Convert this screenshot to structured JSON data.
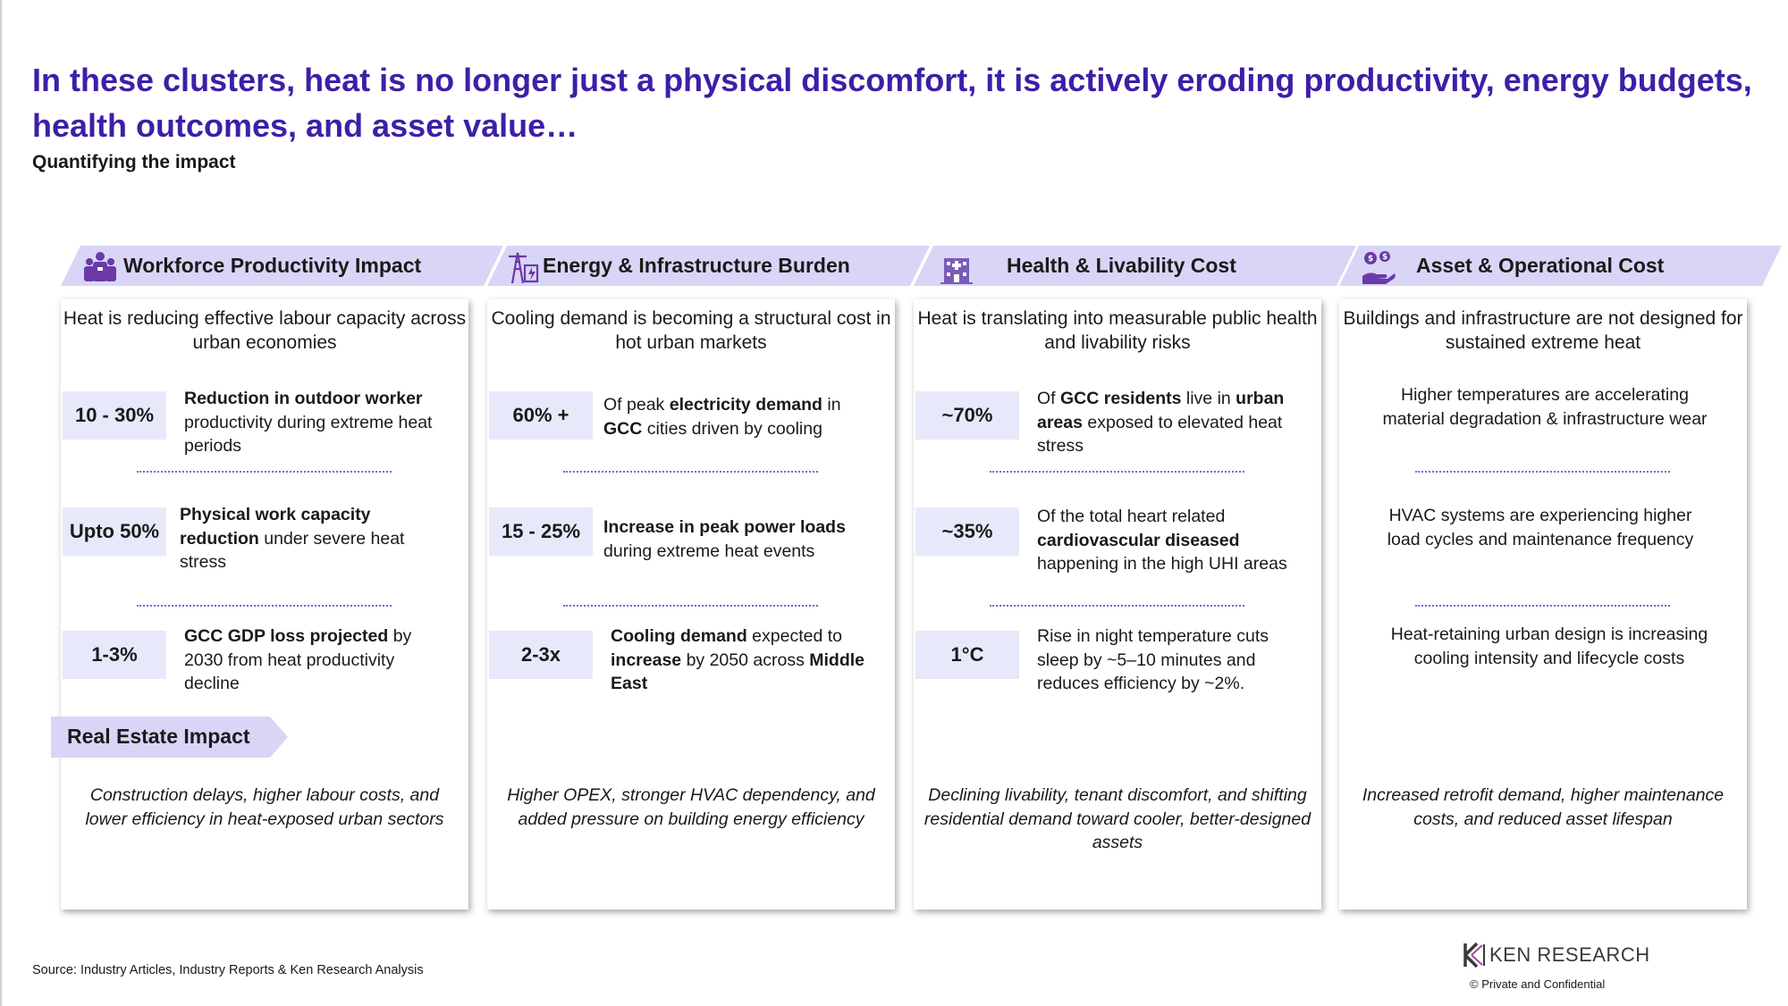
{
  "header": {
    "title": "In these clusters, heat is no longer just a physical discomfort, it is actively eroding productivity, energy budgets, health outcomes, and asset value…",
    "subtitle": "Quantifying the impact"
  },
  "columns": [
    {
      "banner": "Workforce Productivity Impact",
      "icon": "workers-icon",
      "intro": "Heat is reducing effective labour capacity across urban economies",
      "stats": [
        {
          "value": "10 - 30%",
          "bold": "Reduction in outdoor worker",
          "text": " productivity during extreme heat periods"
        },
        {
          "value": "Upto 50%",
          "bold": "Physical work capacity reduction",
          "text": " under severe heat stress"
        },
        {
          "value": "1-3%",
          "bold": "GCC GDP loss projected",
          "text": " by 2030 from heat productivity decline"
        }
      ],
      "impact": "Construction delays, higher labour costs, and lower efficiency in heat-exposed urban sectors"
    },
    {
      "banner": "Energy & Infrastructure Burden",
      "icon": "power-grid-icon",
      "intro": "Cooling demand is becoming a structural cost in hot urban markets",
      "stats": [
        {
          "value": "60% +",
          "pre": "Of peak ",
          "bold": "electricity demand",
          "mid": " in ",
          "bold2": "GCC",
          "text": " cities driven by cooling"
        },
        {
          "value": "15 - 25%",
          "bold": "Increase in peak power loads",
          "text": " during extreme heat events"
        },
        {
          "value": "2-3x",
          "bold": "Cooling demand",
          "mid": " expected to ",
          "bold2": "increase",
          "text": " by 2050 across ",
          "bold3": "Middle East"
        }
      ],
      "impact": "Higher OPEX, stronger HVAC dependency, and added pressure on building energy efficiency"
    },
    {
      "banner": "Health & Livability Cost",
      "icon": "hospital-icon",
      "intro": "Heat is translating into measurable public health and livability risks",
      "stats": [
        {
          "value": "~70%",
          "pre": "Of ",
          "bold": "GCC residents",
          "mid": " live in ",
          "bold2": "urban areas",
          "text": " exposed to elevated heat stress"
        },
        {
          "value": "~35%",
          "pre": "Of the total heart related ",
          "bold": "cardiovascular diseased",
          "text": " happening in the high UHI areas"
        },
        {
          "value": "1°C",
          "text": "Rise in night temperature cuts sleep by ~5–10 minutes and reduces efficiency by ~2%."
        }
      ],
      "impact": "Declining livability, tenant discomfort, and shifting residential demand toward cooler, better-designed assets"
    },
    {
      "banner": "Asset & Operational Cost",
      "icon": "asset-cost-icon",
      "intro": "Buildings and infrastructure are not designed for sustained extreme heat",
      "points": [
        "Higher temperatures are accelerating material degradation & infrastructure wear",
        "HVAC systems are experiencing higher load cycles and maintenance frequency",
        "Heat-retaining urban design is increasing cooling intensity and lifecycle costs"
      ],
      "impact": "Increased retrofit demand, higher maintenance costs, and reduced asset lifespan"
    }
  ],
  "real_estate_tag": "Real Estate Impact",
  "footer": {
    "source": "Source: Industry Articles, Industry Reports & Ken Research Analysis",
    "logo": "KEN RESEARCH",
    "confidential": "©   Private and Confidential"
  },
  "colors": {
    "title": "#3d1fa8",
    "banner": "#d9d5f7",
    "badge": "#e7e9fb",
    "divider": "#6b6bd6"
  }
}
